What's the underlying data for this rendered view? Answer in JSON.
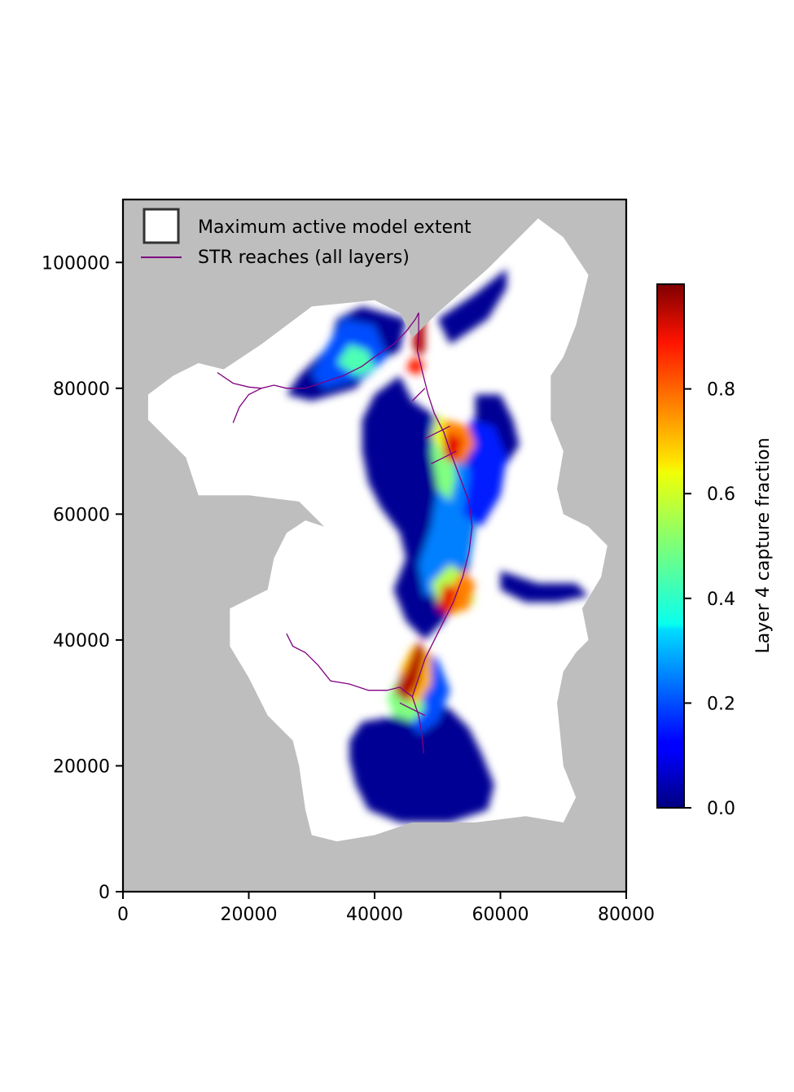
{
  "colors": {
    "background": "#bebebe",
    "active_extent": "#ffffff",
    "stream": "#800080",
    "legend_box_edge": "#333333",
    "axis": "#000000"
  },
  "legend": {
    "items": [
      {
        "label": "Maximum active model extent",
        "symbol": "open-square"
      },
      {
        "label": "STR reaches (all layers)",
        "symbol": "purple-line"
      }
    ]
  },
  "colorbar": {
    "label": "Layer 4 capture fraction",
    "colormap": "jet",
    "range": [
      0.0,
      1.0
    ],
    "ticks": [
      0.0,
      0.2,
      0.4,
      0.6,
      0.8
    ],
    "tick_labels": [
      "0.0",
      "0.2",
      "0.4",
      "0.6",
      "0.8"
    ]
  },
  "chart_data": {
    "type": "heatmap",
    "title": "",
    "xlabel": "",
    "ylabel": "",
    "xlim": [
      0,
      80000
    ],
    "ylim": [
      0,
      110000
    ],
    "xticks": [
      0,
      20000,
      40000,
      60000,
      80000
    ],
    "xtick_labels": [
      "0",
      "20000",
      "40000",
      "60000",
      "80000"
    ],
    "yticks": [
      0,
      20000,
      40000,
      60000,
      80000,
      100000
    ],
    "ytick_labels": [
      "0",
      "20000",
      "40000",
      "60000",
      "80000",
      "100000"
    ],
    "grid": false,
    "legend_position": "upper-left",
    "value_name": "Layer 4 capture fraction",
    "value_range": [
      0.0,
      1.0
    ],
    "active_extent_polygon": [
      [
        16000,
        83000
      ],
      [
        22000,
        87000
      ],
      [
        30000,
        93000
      ],
      [
        40000,
        94000
      ],
      [
        44000,
        92000
      ],
      [
        46000,
        88000
      ],
      [
        50000,
        92000
      ],
      [
        58000,
        99000
      ],
      [
        66000,
        107000
      ],
      [
        70000,
        104000
      ],
      [
        74000,
        98000
      ],
      [
        72000,
        90000
      ],
      [
        70000,
        85000
      ],
      [
        68000,
        82000
      ],
      [
        68000,
        75000
      ],
      [
        70000,
        70000
      ],
      [
        69000,
        64000
      ],
      [
        70000,
        60000
      ],
      [
        74000,
        58000
      ],
      [
        77000,
        55000
      ],
      [
        76000,
        50000
      ],
      [
        73000,
        45000
      ],
      [
        74000,
        40000
      ],
      [
        72000,
        38000
      ],
      [
        70000,
        35000
      ],
      [
        69000,
        30000
      ],
      [
        70000,
        20000
      ],
      [
        72000,
        15000
      ],
      [
        70000,
        11000
      ],
      [
        64000,
        12000
      ],
      [
        56000,
        11000
      ],
      [
        46000,
        11000
      ],
      [
        40000,
        9000
      ],
      [
        34000,
        8000
      ],
      [
        30000,
        9000
      ],
      [
        29000,
        13000
      ],
      [
        28000,
        20000
      ],
      [
        27000,
        24000
      ],
      [
        23000,
        28000
      ],
      [
        20000,
        34000
      ],
      [
        17000,
        39000
      ],
      [
        17000,
        45000
      ],
      [
        23000,
        48000
      ],
      [
        24000,
        53000
      ],
      [
        26000,
        57000
      ],
      [
        29000,
        59000
      ],
      [
        32000,
        58000
      ],
      [
        28000,
        62000
      ],
      [
        20000,
        63000
      ],
      [
        12000,
        63000
      ],
      [
        10000,
        69000
      ],
      [
        6000,
        73000
      ],
      [
        4000,
        75000
      ],
      [
        4000,
        79000
      ],
      [
        8000,
        82000
      ],
      [
        12000,
        84000
      ]
    ],
    "capture_zones": [
      {
        "value": 0.02,
        "points": [
          [
            38000,
            93000
          ],
          [
            45000,
            91000
          ],
          [
            44000,
            86000
          ],
          [
            40000,
            84000
          ],
          [
            37000,
            80000
          ],
          [
            30000,
            78000
          ],
          [
            26000,
            79000
          ],
          [
            28000,
            82000
          ],
          [
            30000,
            84000
          ],
          [
            33000,
            87000
          ],
          [
            34000,
            91000
          ]
        ]
      },
      {
        "value": 0.02,
        "points": [
          [
            44000,
            82000
          ],
          [
            46000,
            78000
          ],
          [
            52000,
            74000
          ],
          [
            55000,
            70000
          ],
          [
            57000,
            65000
          ],
          [
            56000,
            58000
          ],
          [
            55000,
            52000
          ],
          [
            54000,
            47000
          ],
          [
            51000,
            43000
          ],
          [
            48000,
            40000
          ],
          [
            45000,
            43000
          ],
          [
            43000,
            48000
          ],
          [
            45000,
            53000
          ],
          [
            44000,
            57000
          ],
          [
            41000,
            61000
          ],
          [
            39000,
            65000
          ],
          [
            38000,
            70000
          ],
          [
            38000,
            75000
          ],
          [
            40000,
            79000
          ]
        ]
      },
      {
        "value": 0.02,
        "points": [
          [
            50000,
            91000
          ],
          [
            56000,
            95000
          ],
          [
            61000,
            99000
          ],
          [
            61000,
            96000
          ],
          [
            58000,
            91000
          ],
          [
            55000,
            89000
          ],
          [
            52000,
            87000
          ]
        ]
      },
      {
        "value": 0.02,
        "points": [
          [
            56000,
            79000
          ],
          [
            60000,
            79000
          ],
          [
            62000,
            75000
          ],
          [
            63000,
            71000
          ],
          [
            61000,
            68000
          ],
          [
            58000,
            67000
          ],
          [
            56000,
            71000
          ]
        ]
      },
      {
        "value": 0.02,
        "points": [
          [
            60000,
            51000
          ],
          [
            66000,
            49000
          ],
          [
            72000,
            49000
          ],
          [
            74000,
            47000
          ],
          [
            69000,
            46000
          ],
          [
            64000,
            46000
          ],
          [
            60000,
            48000
          ]
        ]
      },
      {
        "value": 0.02,
        "points": [
          [
            38000,
            27000
          ],
          [
            44000,
            28000
          ],
          [
            48000,
            31000
          ],
          [
            52000,
            29000
          ],
          [
            55000,
            26000
          ],
          [
            57000,
            22000
          ],
          [
            59000,
            17000
          ],
          [
            58000,
            13000
          ],
          [
            52000,
            11000
          ],
          [
            44000,
            11000
          ],
          [
            39000,
            13000
          ],
          [
            37000,
            17000
          ],
          [
            36000,
            21000
          ],
          [
            36000,
            24000
          ]
        ]
      },
      {
        "value": 0.2,
        "points": [
          [
            35000,
            91000
          ],
          [
            40000,
            90000
          ],
          [
            42000,
            85000
          ],
          [
            39000,
            82000
          ],
          [
            32000,
            80000
          ],
          [
            30000,
            82000
          ],
          [
            32000,
            86000
          ]
        ]
      },
      {
        "value": 0.25,
        "points": [
          [
            49000,
            75000
          ],
          [
            53000,
            72000
          ],
          [
            55000,
            67000
          ],
          [
            56000,
            60000
          ],
          [
            55000,
            53000
          ],
          [
            52000,
            48000
          ],
          [
            48000,
            47000
          ],
          [
            47000,
            52000
          ],
          [
            49000,
            58000
          ],
          [
            50000,
            64000
          ],
          [
            49000,
            70000
          ]
        ]
      },
      {
        "value": 0.15,
        "points": [
          [
            55000,
            75000
          ],
          [
            59000,
            74000
          ],
          [
            61000,
            69000
          ],
          [
            60000,
            63000
          ],
          [
            57000,
            58000
          ],
          [
            54000,
            60000
          ],
          [
            55000,
            66000
          ]
        ]
      },
      {
        "value": 0.2,
        "points": [
          [
            47000,
            39000
          ],
          [
            50000,
            37000
          ],
          [
            52000,
            32000
          ],
          [
            50000,
            27000
          ],
          [
            47000,
            25000
          ],
          [
            45000,
            28000
          ],
          [
            43000,
            31000
          ],
          [
            44000,
            35000
          ]
        ]
      },
      {
        "value": 0.45,
        "points": [
          [
            36000,
            87000
          ],
          [
            39000,
            86000
          ],
          [
            40000,
            83000
          ],
          [
            37000,
            82000
          ],
          [
            34000,
            84000
          ]
        ]
      },
      {
        "value": 0.5,
        "points": [
          [
            50000,
            74000
          ],
          [
            52000,
            71000
          ],
          [
            53000,
            66000
          ],
          [
            52000,
            62000
          ],
          [
            50000,
            64000
          ],
          [
            49000,
            70000
          ]
        ]
      },
      {
        "value": 0.55,
        "points": [
          [
            52000,
            52000
          ],
          [
            55000,
            50000
          ],
          [
            56000,
            46000
          ],
          [
            53000,
            44000
          ],
          [
            50000,
            46000
          ],
          [
            49000,
            49000
          ]
        ]
      },
      {
        "value": 0.5,
        "points": [
          [
            44000,
            34000
          ],
          [
            47000,
            33000
          ],
          [
            48000,
            29000
          ],
          [
            46000,
            27000
          ],
          [
            43000,
            28000
          ],
          [
            42000,
            31000
          ]
        ]
      },
      {
        "value": 0.6,
        "points": [
          [
            50000,
            76000
          ],
          [
            52000,
            74000
          ],
          [
            51000,
            70000
          ],
          [
            49000,
            72000
          ]
        ]
      },
      {
        "value": 0.75,
        "points": [
          [
            51000,
            75000
          ],
          [
            55000,
            74000
          ],
          [
            56000,
            71000
          ],
          [
            54000,
            68000
          ],
          [
            51000,
            69000
          ]
        ]
      },
      {
        "value": 0.75,
        "points": [
          [
            54000,
            51000
          ],
          [
            56000,
            49000
          ],
          [
            55000,
            45000
          ],
          [
            52000,
            44000
          ],
          [
            51000,
            47000
          ]
        ]
      },
      {
        "value": 0.7,
        "points": [
          [
            46000,
            39000
          ],
          [
            49000,
            38000
          ],
          [
            49000,
            33000
          ],
          [
            47000,
            30000
          ],
          [
            44000,
            31000
          ],
          [
            44000,
            35000
          ]
        ]
      },
      {
        "value": 0.95,
        "points": [
          [
            47000,
            92000
          ],
          [
            48000,
            91000
          ],
          [
            48000,
            86000
          ],
          [
            47000,
            85000
          ],
          [
            46000,
            87000
          ]
        ]
      },
      {
        "value": 0.85,
        "points": [
          [
            46000,
            85000
          ],
          [
            48000,
            84000
          ],
          [
            47000,
            82000
          ],
          [
            45000,
            83000
          ]
        ]
      },
      {
        "value": 0.9,
        "points": [
          [
            51000,
            73000
          ],
          [
            54000,
            72000
          ],
          [
            53000,
            68000
          ],
          [
            51000,
            69000
          ]
        ]
      },
      {
        "value": 0.9,
        "points": [
          [
            51000,
            49000
          ],
          [
            53000,
            48000
          ],
          [
            52000,
            44000
          ],
          [
            50000,
            45000
          ]
        ]
      },
      {
        "value": 0.95,
        "points": [
          [
            47000,
            40000
          ],
          [
            48000,
            38000
          ],
          [
            47000,
            33000
          ],
          [
            45000,
            30000
          ],
          [
            43000,
            32000
          ],
          [
            45000,
            35000
          ]
        ]
      }
    ],
    "stream_reaches": [
      [
        [
          15000,
          82500
        ],
        [
          17500,
          80800
        ],
        [
          20000,
          80200
        ],
        [
          22000,
          80000
        ],
        [
          24000,
          80500
        ],
        [
          26000,
          80000
        ],
        [
          29000,
          80000
        ],
        [
          32000,
          81000
        ],
        [
          35000,
          82000
        ],
        [
          38000,
          83500
        ],
        [
          40000,
          85000
        ],
        [
          43000,
          87000
        ],
        [
          45000,
          89000
        ],
        [
          46500,
          91000
        ],
        [
          47000,
          92000
        ]
      ],
      [
        [
          17500,
          74500
        ],
        [
          18500,
          77000
        ],
        [
          20000,
          79000
        ],
        [
          22000,
          80000
        ]
      ],
      [
        [
          47000,
          92000
        ],
        [
          47000,
          89000
        ],
        [
          46800,
          86000
        ],
        [
          47500,
          83000
        ],
        [
          48500,
          79000
        ],
        [
          49500,
          76000
        ],
        [
          51000,
          73000
        ],
        [
          52000,
          70000
        ],
        [
          53500,
          66000
        ],
        [
          55000,
          62000
        ],
        [
          55500,
          58000
        ],
        [
          55000,
          54000
        ],
        [
          54000,
          50000
        ],
        [
          52500,
          46000
        ],
        [
          51000,
          43000
        ],
        [
          49500,
          40000
        ],
        [
          48000,
          37000
        ],
        [
          47000,
          34000
        ],
        [
          46000,
          31000
        ],
        [
          47000,
          28000
        ],
        [
          47500,
          25000
        ],
        [
          47800,
          22000
        ]
      ],
      [
        [
          26000,
          41000
        ],
        [
          27000,
          39000
        ],
        [
          29000,
          38000
        ],
        [
          31000,
          36000
        ],
        [
          33000,
          33500
        ],
        [
          36000,
          33000
        ],
        [
          39000,
          32000
        ],
        [
          42000,
          32000
        ],
        [
          44000,
          32500
        ],
        [
          46000,
          31000
        ]
      ],
      [
        [
          48000,
          72000
        ],
        [
          50000,
          73000
        ],
        [
          52000,
          74000
        ]
      ],
      [
        [
          49000,
          68000
        ],
        [
          51000,
          69000
        ],
        [
          53000,
          70000
        ]
      ],
      [
        [
          48000,
          80000
        ],
        [
          46000,
          78000
        ]
      ],
      [
        [
          44000,
          30000
        ],
        [
          46000,
          29000
        ],
        [
          48000,
          28000
        ]
      ]
    ]
  }
}
